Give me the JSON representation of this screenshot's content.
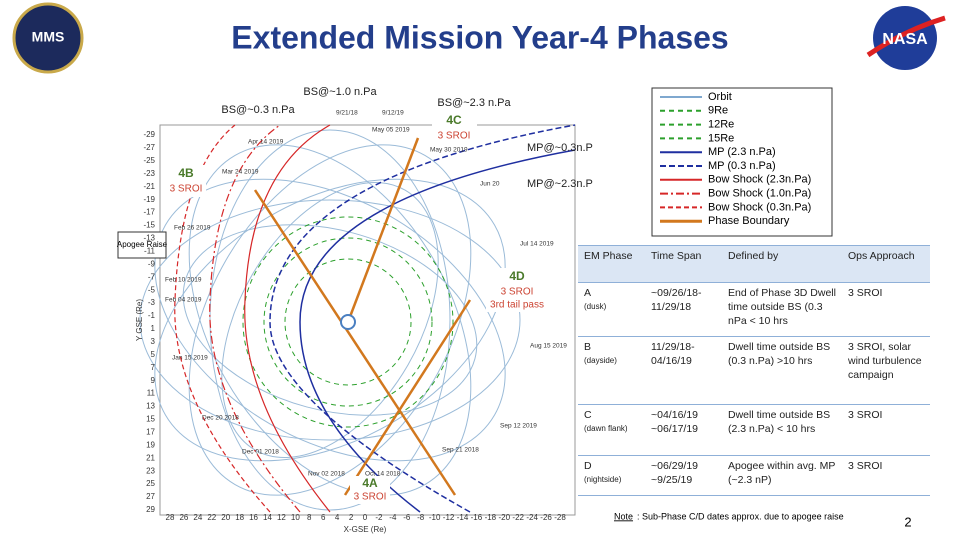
{
  "header": {
    "title": "Extended Mission Year-4 Phases",
    "logo_left": "MMS",
    "logo_right": "NASA"
  },
  "plot": {
    "x_label": "X-GSE (Re)",
    "y_label": "Y GSE (Re)",
    "x_ticks": [
      28,
      26,
      24,
      22,
      20,
      18,
      16,
      14,
      12,
      10,
      8,
      6,
      4,
      2,
      0,
      -2,
      -4,
      -6,
      -8,
      -10,
      -12,
      -14,
      -16,
      -18,
      -20,
      -22,
      -24,
      -26,
      -28
    ],
    "y_ticks": [
      -29,
      -27,
      -25,
      -23,
      -21,
      -19,
      -17,
      -15,
      -13,
      -11,
      -9,
      -7,
      -5,
      -3,
      -1,
      1,
      3,
      5,
      7,
      9,
      11,
      13,
      15,
      17,
      19,
      21,
      23,
      25,
      27,
      29
    ],
    "dates": [
      "9/21/18",
      "9/12/19",
      "Apr 14 2019",
      "Mar 24 2019",
      "May 05 2019",
      "May 30 2019",
      "Jun 20",
      "Feb 26 2019",
      "Jul 14 2019",
      "Feb 10 2019",
      "Feb 04 2019",
      "Aug 15 2019",
      "Jan 15 2019",
      "Dec 20 2018",
      "Dec 01 2018",
      "Sep 12 2019",
      "Sep 21 2018",
      "Nov 02 2018",
      "Oct 14 2018"
    ],
    "annotations": {
      "bs_1_0": "BS@~1.0 n.Pa",
      "bs_0_3": "BS@~0.3 n.Pa",
      "bs_2_3": "BS@~2.3 n.Pa",
      "mp_0_3": "MP@~0.3n.P",
      "mp_2_3": "MP@~2.3n.P",
      "apogee": "Apogee Raise",
      "phase_4c": "4C",
      "sroi_4c": "3 SROI",
      "phase_4b": "4B",
      "sroi_4b": "3 SROI",
      "phase_4d": "4D",
      "sroi_4d": "3 SROI",
      "tail_4d": "3rd tail pass",
      "phase_4a": "4A",
      "sroi_4a": "3 SROI"
    }
  },
  "legend": [
    {
      "label": "Orbit",
      "color": "#7fa8cf"
    },
    {
      "label": "9Re",
      "color": "#2ca02c"
    },
    {
      "label": "12Re",
      "color": "#2ca02c"
    },
    {
      "label": "15Re",
      "color": "#2ca02c"
    },
    {
      "label": "MP (2.3 n.Pa)",
      "color": "#1f2fa0"
    },
    {
      "label": "MP (0.3 n.Pa)",
      "color": "#1f2fa0"
    },
    {
      "label": "Bow Shock (2.3n.Pa)",
      "color": "#d62728"
    },
    {
      "label": "Bow Shock (1.0n.Pa)",
      "color": "#d62728"
    },
    {
      "label": "Bow Shock (0.3n.Pa)",
      "color": "#d62728"
    },
    {
      "label": "Phase Boundary",
      "color": "#d2781e"
    }
  ],
  "table": {
    "header": [
      "EM Phase",
      "Time Span",
      "Defined by",
      "Ops Approach"
    ],
    "rows": [
      [
        {
          "letter": "A",
          "desc": "(dusk)"
        },
        "~09/26/18-11/29/18",
        "End of Phase 3D Dwell time outside BS (0.3 nPa < 10 hrs",
        "3 SROI"
      ],
      [
        {
          "letter": "B",
          "desc": "(dayside)"
        },
        "11/29/18-04/16/19",
        "Dwell time outside BS (0.3 n.Pa) >10 hrs",
        "3 SROI, solar wind turbulence campaign"
      ],
      [
        {
          "letter": "C",
          "desc": "(dawn flank)"
        },
        "~04/16/19 ~06/17/19",
        "Dwell time outside BS (2.3 n.Pa) < 10 hrs",
        "3 SROI"
      ],
      [
        {
          "letter": "D",
          "desc": "(nightside)"
        },
        "~06/29/19 ~9/25/19",
        "Apogee within avg. MP (~2.3 nP)",
        "3 SROI"
      ]
    ]
  },
  "note": {
    "label": "Note",
    "text": ": Sub-Phase C/D dates approx. due to apogee raise"
  },
  "page_number": "2"
}
